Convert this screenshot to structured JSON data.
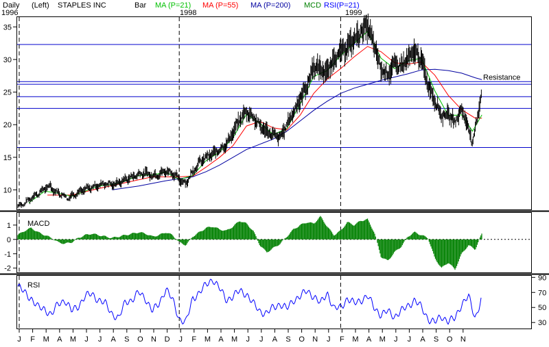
{
  "header": {
    "period": "Daily",
    "axis_side": "(Left)",
    "symbol": "STAPLES INC",
    "bar": "Bar",
    "ma21": "MA (P=21)",
    "ma55": "MA (P=55)",
    "ma200": "MA (P=200)",
    "mcd": "MCD",
    "rsi": "RSI(P=21)"
  },
  "colors": {
    "price": "#000000",
    "ma21": "#00c000",
    "ma55": "#ff0000",
    "ma200": "#0000a0",
    "hline": "#0000cc",
    "macd": "#008000",
    "rsi": "#0000ff"
  },
  "chart_data": [
    {
      "type": "line",
      "name": "price",
      "year_labels": [
        "1996",
        "1998",
        "1999"
      ],
      "x_ticks": [
        "J",
        "F",
        "M",
        "A",
        "M",
        "J",
        "J",
        "A",
        "S",
        "O",
        "N",
        "D",
        "J",
        "F",
        "M",
        "A",
        "M",
        "J",
        "J",
        "A",
        "S",
        "O",
        "N",
        "J",
        "F",
        "M",
        "A",
        "M",
        "J",
        "J",
        "A",
        "S",
        "O",
        "N"
      ],
      "y_ticks": [
        10,
        15,
        20,
        25,
        30,
        35
      ],
      "ylim": [
        7,
        36.5
      ],
      "horizontal_lines": [
        32.3,
        26.6,
        26.2,
        24.3,
        22.5,
        16.5
      ],
      "annotation": "Resistance",
      "annotation_level": 26.6,
      "price_path": [
        [
          0,
          7.5
        ],
        [
          0.5,
          7.9
        ],
        [
          1,
          8.8
        ],
        [
          1.5,
          9.4
        ],
        [
          2,
          10.2
        ],
        [
          2.4,
          10.6
        ],
        [
          2.8,
          9.7
        ],
        [
          3.3,
          9.3
        ],
        [
          3.7,
          8.7
        ],
        [
          4,
          9.1
        ],
        [
          4.5,
          9.6
        ],
        [
          5,
          10.1
        ],
        [
          5.5,
          10.4
        ],
        [
          6,
          10.7
        ],
        [
          6.5,
          11.0
        ],
        [
          7,
          10.8
        ],
        [
          7.5,
          11.1
        ],
        [
          8,
          11.6
        ],
        [
          8.5,
          12.0
        ],
        [
          9,
          12.4
        ],
        [
          9.5,
          12.6
        ],
        [
          10,
          12.2
        ],
        [
          10.5,
          12.4
        ],
        [
          11,
          12.9
        ],
        [
          11.5,
          12.6
        ],
        [
          12,
          11.6
        ],
        [
          12.5,
          11.0
        ],
        [
          13,
          12.8
        ],
        [
          13.5,
          14.2
        ],
        [
          14,
          15.0
        ],
        [
          14.5,
          15.5
        ],
        [
          15,
          16.2
        ],
        [
          15.5,
          17.0
        ],
        [
          16,
          18.8
        ],
        [
          16.5,
          20.8
        ],
        [
          17,
          22.0
        ],
        [
          17.5,
          21.2
        ],
        [
          18,
          19.8
        ],
        [
          18.5,
          19.0
        ],
        [
          19,
          18.4
        ],
        [
          19.5,
          18.0
        ],
        [
          20,
          20.0
        ],
        [
          20.5,
          22.0
        ],
        [
          21,
          24.0
        ],
        [
          21.5,
          26.0
        ],
        [
          22,
          29.0
        ],
        [
          22.5,
          28.5
        ],
        [
          23,
          28.0
        ],
        [
          23.5,
          30.2
        ],
        [
          24,
          31.0
        ],
        [
          24.5,
          32.0
        ],
        [
          25,
          33.0
        ],
        [
          25.5,
          34.2
        ],
        [
          26,
          35.2
        ],
        [
          26.5,
          32.0
        ],
        [
          27,
          28.5
        ],
        [
          27.5,
          27.8
        ],
        [
          28,
          29.2
        ],
        [
          28.5,
          29.0
        ],
        [
          29,
          30.0
        ],
        [
          29.5,
          31.2
        ],
        [
          30,
          30.0
        ],
        [
          30.5,
          26.2
        ],
        [
          31,
          23.8
        ],
        [
          31.5,
          21.4
        ],
        [
          32,
          21.6
        ],
        [
          32.5,
          20.4
        ],
        [
          33,
          22.4
        ],
        [
          33.5,
          19.6
        ],
        [
          33.8,
          17.0
        ],
        [
          34.2,
          21.5
        ],
        [
          34.5,
          25.5
        ]
      ],
      "ma21_path": [
        [
          0.8,
          8.0
        ],
        [
          2,
          9.8
        ],
        [
          3,
          9.5
        ],
        [
          4,
          9.0
        ],
        [
          5,
          9.8
        ],
        [
          6,
          10.6
        ],
        [
          7,
          10.8
        ],
        [
          8,
          11.4
        ],
        [
          9,
          12.2
        ],
        [
          10,
          12.3
        ],
        [
          11,
          12.7
        ],
        [
          12,
          11.6
        ],
        [
          13,
          12.2
        ],
        [
          14,
          14.5
        ],
        [
          15,
          15.8
        ],
        [
          16,
          18.0
        ],
        [
          17,
          21.6
        ],
        [
          18,
          20.2
        ],
        [
          19,
          18.5
        ],
        [
          20,
          19.4
        ],
        [
          21,
          23.2
        ],
        [
          22,
          27.4
        ],
        [
          23,
          28.3
        ],
        [
          24,
          30.6
        ],
        [
          25,
          32.5
        ],
        [
          26,
          34.3
        ],
        [
          27,
          30.2
        ],
        [
          28,
          28.6
        ],
        [
          29,
          29.8
        ],
        [
          30,
          30.2
        ],
        [
          31,
          25.2
        ],
        [
          32,
          21.4
        ],
        [
          33,
          21.5
        ],
        [
          33.8,
          19.0
        ],
        [
          34.5,
          21.5
        ]
      ],
      "ma55_path": [
        [
          2.2,
          9.2
        ],
        [
          4,
          9.2
        ],
        [
          6,
          10.2
        ],
        [
          8,
          11.1
        ],
        [
          10,
          12.0
        ],
        [
          12,
          12.0
        ],
        [
          13,
          12.1
        ],
        [
          14,
          13.5
        ],
        [
          15,
          15.0
        ],
        [
          16,
          16.8
        ],
        [
          17,
          19.8
        ],
        [
          18,
          20.5
        ],
        [
          19,
          19.5
        ],
        [
          20,
          19.2
        ],
        [
          21,
          21.5
        ],
        [
          22,
          24.8
        ],
        [
          23,
          27.0
        ],
        [
          24,
          28.6
        ],
        [
          25,
          30.4
        ],
        [
          26,
          32.0
        ],
        [
          27,
          31.2
        ],
        [
          28,
          29.5
        ],
        [
          29,
          29.3
        ],
        [
          30,
          29.6
        ],
        [
          31,
          27.6
        ],
        [
          32,
          24.5
        ],
        [
          33,
          22.3
        ],
        [
          34,
          21.0
        ],
        [
          34.5,
          21.0
        ]
      ],
      "ma200_path": [
        [
          7,
          10.0
        ],
        [
          9,
          10.6
        ],
        [
          11,
          11.4
        ],
        [
          13,
          12.0
        ],
        [
          14,
          12.8
        ],
        [
          15,
          13.8
        ],
        [
          16,
          15.0
        ],
        [
          17,
          16.2
        ],
        [
          18,
          17.0
        ],
        [
          19,
          17.8
        ],
        [
          20,
          19.0
        ],
        [
          21,
          20.6
        ],
        [
          22,
          22.2
        ],
        [
          23,
          23.6
        ],
        [
          24,
          24.8
        ],
        [
          25,
          25.6
        ],
        [
          26,
          26.2
        ],
        [
          27,
          26.8
        ],
        [
          28,
          27.3
        ],
        [
          29,
          27.8
        ],
        [
          30,
          28.4
        ],
        [
          31,
          28.5
        ],
        [
          32,
          28.3
        ],
        [
          33,
          27.9
        ],
        [
          34,
          27.2
        ],
        [
          34.5,
          26.9
        ]
      ]
    },
    {
      "type": "bar",
      "name": "MACD",
      "label": "MACD",
      "y_ticks": [
        1,
        0,
        -1,
        -2
      ],
      "ylim": [
        -2.3,
        1.9
      ],
      "zero_line": 0,
      "x": [
        0,
        0.5,
        1,
        1.5,
        2,
        2.5,
        3,
        3.5,
        4,
        4.5,
        5,
        5.5,
        6,
        6.5,
        7,
        7.5,
        8,
        8.5,
        9,
        9.5,
        10,
        10.5,
        11,
        11.5,
        12,
        12.5,
        13,
        13.5,
        14,
        14.5,
        15,
        15.5,
        16,
        16.5,
        17,
        17.5,
        18,
        18.5,
        19,
        19.5,
        20,
        20.5,
        21,
        21.5,
        22,
        22.5,
        23,
        23.5,
        24,
        24.5,
        25,
        25.5,
        26,
        26.5,
        27,
        27.5,
        28,
        28.5,
        29,
        29.5,
        30,
        30.5,
        31,
        31.5,
        32,
        32.5,
        33,
        33.5,
        34,
        34.5
      ],
      "values": [
        0.3,
        0.6,
        0.8,
        0.5,
        0.3,
        0.1,
        -0.2,
        -0.3,
        -0.2,
        0.1,
        0.3,
        0.4,
        0.3,
        0.2,
        0.1,
        0.2,
        0.3,
        0.4,
        0.5,
        0.4,
        0.2,
        0.3,
        0.5,
        0.3,
        -0.2,
        -0.4,
        0.2,
        0.5,
        0.8,
        0.9,
        0.7,
        0.6,
        0.9,
        1.3,
        1.1,
        0.6,
        -0.4,
        -0.9,
        -0.6,
        -0.3,
        0.2,
        0.7,
        1.0,
        1.2,
        1.1,
        1.6,
        0.9,
        0.3,
        0.6,
        1.2,
        1.0,
        1.3,
        1.4,
        0.5,
        -1.2,
        -1.5,
        -0.9,
        -0.5,
        0.2,
        0.5,
        0.3,
        0.1,
        -1.3,
        -2.0,
        -1.6,
        -2.1,
        -1.0,
        -0.4,
        -0.7,
        0.4
      ]
    },
    {
      "type": "line",
      "name": "RSI",
      "label": "RSI",
      "y_ticks": [
        90,
        70,
        50,
        30
      ],
      "ylim": [
        22,
        93
      ],
      "x": [
        0,
        0.5,
        1,
        1.5,
        2,
        2.5,
        3,
        3.5,
        4,
        4.5,
        5,
        5.5,
        6,
        6.5,
        7,
        7.5,
        8,
        8.5,
        9,
        9.5,
        10,
        10.5,
        11,
        11.5,
        12,
        12.5,
        13,
        13.5,
        14,
        14.5,
        15,
        15.5,
        16,
        16.5,
        17,
        17.5,
        18,
        18.5,
        19,
        19.5,
        20,
        20.5,
        21,
        21.5,
        22,
        22.5,
        23,
        23.5,
        24,
        24.5,
        25,
        25.5,
        26,
        26.5,
        27,
        27.5,
        28,
        28.5,
        29,
        29.5,
        30,
        30.5,
        31,
        31.5,
        32,
        32.5,
        33,
        33.5,
        34,
        34.5
      ],
      "values": [
        78,
        70,
        62,
        50,
        48,
        40,
        55,
        60,
        45,
        52,
        65,
        68,
        60,
        55,
        42,
        35,
        58,
        60,
        70,
        62,
        45,
        55,
        75,
        60,
        35,
        30,
        62,
        70,
        80,
        88,
        75,
        60,
        65,
        72,
        68,
        55,
        45,
        42,
        50,
        55,
        48,
        60,
        65,
        72,
        65,
        55,
        70,
        48,
        50,
        62,
        55,
        60,
        65,
        50,
        40,
        45,
        38,
        45,
        52,
        60,
        50,
        35,
        30,
        38,
        32,
        35,
        55,
        65,
        35,
        65
      ]
    }
  ]
}
